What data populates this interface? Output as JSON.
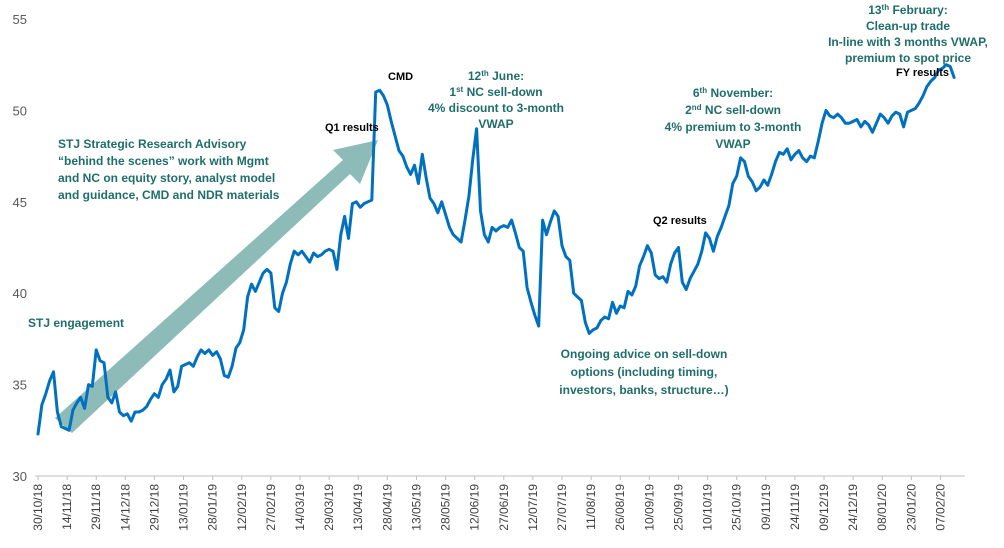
{
  "colors": {
    "line": "#0070c0",
    "arrow": "#7fb4b0",
    "annotation": "#1f6e6a",
    "axis": "#bfbfbf"
  },
  "chart_data": {
    "type": "line",
    "ylim": [
      30,
      55
    ],
    "yticks": [
      "30",
      "35",
      "40",
      "45",
      "50",
      "55"
    ],
    "x_tick_labels": [
      "30/10/18",
      "14/11/18",
      "29/11/18",
      "14/12/18",
      "29/12/18",
      "13/01/19",
      "28/01/19",
      "12/02/19",
      "27/02/19",
      "14/03/19",
      "29/03/19",
      "13/04/19",
      "28/04/19",
      "13/05/19",
      "28/05/19",
      "12/06/19",
      "27/06/19",
      "12/07/19",
      "27/07/19",
      "11/08/19",
      "26/08/19",
      "10/09/19",
      "25/09/19",
      "10/10/19",
      "25/10/19",
      "09/11/19",
      "24/11/19",
      "09/12/19",
      "24/12/19",
      "08/01/20",
      "23/01/20",
      "07/02/20"
    ],
    "x_range": [
      "30/10/18",
      "15/02/20"
    ],
    "grid": false,
    "series": [
      {
        "points": [
          [
            "30/10/18",
            32.3
          ],
          [
            "01/11/18",
            33.9
          ],
          [
            "03/11/18",
            34.5
          ],
          [
            "05/11/18",
            35.2
          ],
          [
            "07/11/18",
            35.7
          ],
          [
            "09/11/18",
            33.5
          ],
          [
            "11/11/18",
            32.7
          ],
          [
            "13/11/18",
            32.6
          ],
          [
            "15/11/18",
            32.5
          ],
          [
            "17/11/18",
            33.6
          ],
          [
            "19/11/18",
            34.0
          ],
          [
            "21/11/18",
            34.3
          ],
          [
            "23/11/18",
            33.7
          ],
          [
            "25/11/18",
            35.0
          ],
          [
            "27/11/18",
            34.9
          ],
          [
            "29/11/18",
            36.9
          ],
          [
            "01/12/18",
            36.3
          ],
          [
            "03/12/18",
            36.2
          ],
          [
            "05/12/18",
            34.3
          ],
          [
            "07/12/18",
            34.0
          ],
          [
            "09/12/18",
            34.6
          ],
          [
            "11/12/18",
            33.5
          ],
          [
            "13/12/18",
            33.3
          ],
          [
            "15/12/18",
            33.4
          ],
          [
            "17/12/18",
            33.0
          ],
          [
            "19/12/18",
            33.5
          ],
          [
            "21/12/18",
            33.5
          ],
          [
            "23/12/18",
            33.6
          ],
          [
            "25/12/18",
            33.8
          ],
          [
            "27/12/18",
            34.2
          ],
          [
            "29/12/18",
            34.5
          ],
          [
            "31/12/18",
            34.3
          ],
          [
            "02/01/19",
            35.0
          ],
          [
            "04/01/19",
            35.3
          ],
          [
            "06/01/19",
            35.8
          ],
          [
            "08/01/19",
            34.6
          ],
          [
            "10/01/19",
            34.9
          ],
          [
            "12/01/19",
            36.0
          ],
          [
            "14/01/19",
            36.1
          ],
          [
            "16/01/19",
            36.2
          ],
          [
            "18/01/19",
            36.0
          ],
          [
            "20/01/19",
            36.5
          ],
          [
            "22/01/19",
            36.9
          ],
          [
            "24/01/19",
            36.7
          ],
          [
            "26/01/19",
            36.9
          ],
          [
            "28/01/19",
            36.6
          ],
          [
            "30/01/19",
            36.8
          ],
          [
            "01/02/19",
            36.4
          ],
          [
            "03/02/19",
            35.5
          ],
          [
            "05/02/19",
            35.4
          ],
          [
            "07/02/19",
            36.0
          ],
          [
            "09/02/19",
            37.0
          ],
          [
            "11/02/19",
            37.3
          ],
          [
            "13/02/19",
            38.0
          ],
          [
            "15/02/19",
            39.8
          ],
          [
            "17/02/19",
            40.5
          ],
          [
            "19/02/19",
            40.1
          ],
          [
            "21/02/19",
            40.6
          ],
          [
            "23/02/19",
            41.1
          ],
          [
            "25/02/19",
            41.3
          ],
          [
            "27/02/19",
            41.1
          ],
          [
            "01/03/19",
            39.2
          ],
          [
            "03/03/19",
            39.0
          ],
          [
            "05/03/19",
            40.0
          ],
          [
            "07/03/19",
            40.6
          ],
          [
            "09/03/19",
            41.6
          ],
          [
            "11/03/19",
            42.3
          ],
          [
            "13/03/19",
            42.1
          ],
          [
            "15/03/19",
            42.3
          ],
          [
            "17/03/19",
            42.0
          ],
          [
            "19/03/19",
            41.7
          ],
          [
            "21/03/19",
            42.2
          ],
          [
            "23/03/19",
            42.0
          ],
          [
            "25/03/19",
            42.1
          ],
          [
            "27/03/19",
            42.3
          ],
          [
            "29/03/19",
            42.4
          ],
          [
            "31/03/19",
            42.3
          ],
          [
            "02/04/19",
            41.3
          ],
          [
            "04/04/19",
            43.2
          ],
          [
            "06/04/19",
            44.2
          ],
          [
            "08/04/19",
            43.0
          ],
          [
            "10/04/19",
            44.9
          ],
          [
            "12/04/19",
            45.0
          ],
          [
            "14/04/19",
            44.7
          ],
          [
            "16/04/19",
            44.9
          ],
          [
            "18/04/19",
            45.0
          ],
          [
            "20/04/19",
            45.1
          ],
          [
            "22/04/19",
            51.0
          ],
          [
            "24/04/19",
            51.1
          ],
          [
            "26/04/19",
            50.8
          ],
          [
            "28/04/19",
            50.3
          ],
          [
            "30/04/19",
            49.4
          ],
          [
            "02/05/19",
            48.6
          ],
          [
            "04/05/19",
            47.8
          ],
          [
            "06/05/19",
            47.5
          ],
          [
            "08/05/19",
            46.9
          ],
          [
            "10/05/19",
            46.5
          ],
          [
            "12/05/19",
            47.0
          ],
          [
            "14/05/19",
            46.0
          ],
          [
            "16/05/19",
            47.6
          ],
          [
            "18/05/19",
            46.3
          ],
          [
            "20/05/19",
            45.2
          ],
          [
            "22/05/19",
            44.9
          ],
          [
            "24/05/19",
            44.4
          ],
          [
            "26/05/19",
            45.0
          ],
          [
            "28/05/19",
            44.3
          ],
          [
            "30/05/19",
            43.6
          ],
          [
            "01/06/19",
            43.2
          ],
          [
            "03/06/19",
            43.0
          ],
          [
            "05/06/19",
            42.8
          ],
          [
            "07/06/19",
            44.0
          ],
          [
            "09/06/19",
            45.3
          ],
          [
            "11/06/19",
            47.3
          ],
          [
            "13/06/19",
            49.0
          ],
          [
            "15/06/19",
            44.5
          ],
          [
            "17/06/19",
            43.2
          ],
          [
            "19/06/19",
            42.8
          ],
          [
            "21/06/19",
            43.6
          ],
          [
            "23/06/19",
            43.4
          ],
          [
            "25/06/19",
            43.6
          ],
          [
            "27/06/19",
            43.7
          ],
          [
            "29/06/19",
            43.6
          ],
          [
            "01/07/19",
            44.0
          ],
          [
            "03/07/19",
            43.3
          ],
          [
            "05/07/19",
            42.5
          ],
          [
            "07/07/19",
            42.3
          ],
          [
            "09/07/19",
            40.3
          ],
          [
            "11/07/19",
            39.5
          ],
          [
            "13/07/19",
            38.8
          ],
          [
            "15/07/19",
            38.2
          ],
          [
            "17/07/19",
            44.0
          ],
          [
            "19/07/19",
            43.2
          ],
          [
            "21/07/19",
            43.9
          ],
          [
            "23/07/19",
            44.5
          ],
          [
            "25/07/19",
            44.2
          ],
          [
            "27/07/19",
            42.6
          ],
          [
            "29/07/19",
            42.0
          ],
          [
            "31/07/19",
            41.8
          ],
          [
            "02/08/19",
            40.0
          ],
          [
            "04/08/19",
            39.8
          ],
          [
            "06/08/19",
            39.6
          ],
          [
            "08/08/19",
            38.4
          ],
          [
            "10/08/19",
            37.8
          ],
          [
            "12/08/19",
            38.0
          ],
          [
            "14/08/19",
            38.1
          ],
          [
            "16/08/19",
            38.5
          ],
          [
            "18/08/19",
            38.7
          ],
          [
            "20/08/19",
            38.6
          ],
          [
            "22/08/19",
            39.5
          ],
          [
            "24/08/19",
            38.9
          ],
          [
            "26/08/19",
            39.3
          ],
          [
            "28/08/19",
            39.2
          ],
          [
            "30/08/19",
            40.1
          ],
          [
            "01/09/19",
            39.9
          ],
          [
            "03/09/19",
            40.4
          ],
          [
            "05/09/19",
            41.5
          ],
          [
            "07/09/19",
            42.0
          ],
          [
            "09/09/19",
            42.6
          ],
          [
            "11/09/19",
            42.2
          ],
          [
            "13/09/19",
            41.0
          ],
          [
            "15/09/19",
            40.8
          ],
          [
            "17/09/19",
            40.9
          ],
          [
            "19/09/19",
            40.6
          ],
          [
            "21/09/19",
            41.6
          ],
          [
            "23/09/19",
            42.2
          ],
          [
            "25/09/19",
            42.5
          ],
          [
            "27/09/19",
            40.6
          ],
          [
            "29/09/19",
            40.2
          ],
          [
            "01/10/19",
            40.8
          ],
          [
            "03/10/19",
            41.2
          ],
          [
            "05/10/19",
            41.6
          ],
          [
            "07/10/19",
            42.3
          ],
          [
            "09/10/19",
            43.3
          ],
          [
            "11/10/19",
            43.0
          ],
          [
            "13/10/19",
            42.3
          ],
          [
            "15/10/19",
            43.1
          ],
          [
            "17/10/19",
            43.6
          ],
          [
            "19/10/19",
            44.2
          ],
          [
            "21/10/19",
            44.8
          ],
          [
            "23/10/19",
            46.0
          ],
          [
            "25/10/19",
            46.4
          ],
          [
            "27/10/19",
            47.4
          ],
          [
            "29/10/19",
            47.2
          ],
          [
            "31/10/19",
            46.4
          ],
          [
            "02/11/19",
            46.1
          ],
          [
            "04/11/19",
            45.6
          ],
          [
            "06/11/19",
            45.8
          ],
          [
            "08/11/19",
            46.2
          ],
          [
            "10/11/19",
            45.9
          ],
          [
            "12/11/19",
            46.5
          ],
          [
            "14/11/19",
            47.2
          ],
          [
            "16/11/19",
            47.7
          ],
          [
            "18/11/19",
            47.6
          ],
          [
            "20/11/19",
            47.9
          ],
          [
            "22/11/19",
            47.3
          ],
          [
            "24/11/19",
            47.6
          ],
          [
            "26/11/19",
            47.8
          ],
          [
            "28/11/19",
            47.4
          ],
          [
            "30/11/19",
            47.2
          ],
          [
            "02/12/19",
            47.5
          ],
          [
            "04/12/19",
            47.4
          ],
          [
            "06/12/19",
            48.3
          ],
          [
            "08/12/19",
            49.3
          ],
          [
            "10/12/19",
            50.0
          ],
          [
            "12/12/19",
            49.7
          ],
          [
            "14/12/19",
            49.6
          ],
          [
            "16/12/19",
            49.8
          ],
          [
            "18/12/19",
            49.6
          ],
          [
            "20/12/19",
            49.3
          ],
          [
            "22/12/19",
            49.3
          ],
          [
            "24/12/19",
            49.4
          ],
          [
            "26/12/19",
            49.5
          ],
          [
            "28/12/19",
            49.1
          ],
          [
            "30/12/19",
            49.4
          ],
          [
            "01/01/20",
            49.2
          ],
          [
            "03/01/20",
            48.8
          ],
          [
            "05/01/20",
            49.3
          ],
          [
            "07/01/20",
            49.8
          ],
          [
            "09/01/20",
            49.6
          ],
          [
            "11/01/20",
            49.3
          ],
          [
            "13/01/20",
            49.7
          ],
          [
            "15/01/20",
            49.9
          ],
          [
            "17/01/20",
            49.8
          ],
          [
            "19/01/20",
            49.1
          ],
          [
            "21/01/20",
            49.9
          ],
          [
            "23/01/20",
            50.0
          ],
          [
            "25/01/20",
            50.1
          ],
          [
            "27/01/20",
            50.4
          ],
          [
            "29/01/20",
            50.8
          ],
          [
            "31/01/20",
            51.3
          ],
          [
            "02/02/20",
            51.6
          ],
          [
            "04/02/20",
            51.8
          ],
          [
            "06/02/20",
            52.2
          ],
          [
            "08/02/20",
            52.3
          ],
          [
            "10/02/20",
            52.5
          ],
          [
            "12/02/20",
            52.4
          ],
          [
            "14/02/20",
            51.8
          ]
        ]
      }
    ],
    "annotations": {
      "stj_engagement": "STJ engagement",
      "advisory": [
        "STJ Strategic Research Advisory",
        "“behind the scenes” work with Mgmt",
        "and NC on equity story, analyst model",
        "and guidance, CMD and NDR materials"
      ],
      "q1_results": "Q1 results",
      "cmd": "CMD",
      "june_selldown": {
        "line1_day": "12",
        "line1_sup": "th",
        "line1_rest": " June:",
        "line2_num": "1",
        "line2_sup": "st",
        "line2_rest": " NC sell-down",
        "line3": "4% discount to 3-month",
        "line4": "VWAP"
      },
      "ongoing": [
        "Ongoing advice on sell-down",
        "options (including timing,",
        "investors, banks, structure…)"
      ],
      "q2_results": "Q2 results",
      "november_selldown": {
        "line1_day": "6",
        "line1_sup": "th",
        "line1_rest": " November:",
        "line2_num": "2",
        "line2_sup": "nd",
        "line2_rest": " NC sell-down",
        "line3": "4% premium to 3-month",
        "line4": "VWAP"
      },
      "february": {
        "line1_day": "13",
        "line1_sup": "th",
        "line1_rest": " February:",
        "line2": "Clean-up trade",
        "line3": "In-line with 3 months VWAP,",
        "line4": "premium to spot price"
      },
      "fy_results": "FY results"
    }
  }
}
